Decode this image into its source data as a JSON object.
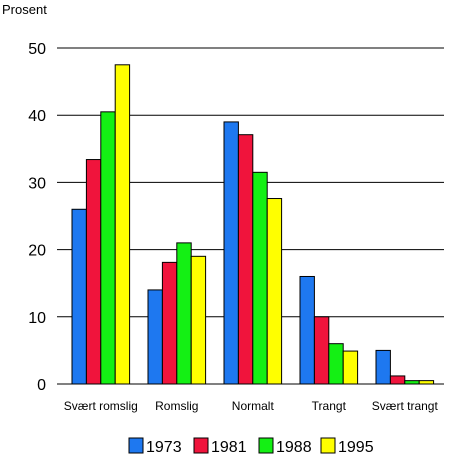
{
  "chart_data": {
    "type": "bar",
    "ylabel": "Prosent",
    "ylim": [
      0,
      50
    ],
    "yticks": [
      0,
      10,
      20,
      30,
      40,
      50
    ],
    "grid": true,
    "legend_position": "bottom",
    "categories": [
      "Svært romslig",
      "Romslig",
      "Normalt",
      "Trangt",
      "Svært trangt"
    ],
    "series": [
      {
        "name": "1973",
        "color": "#1e78f0",
        "values": [
          26,
          14,
          39,
          16,
          5
        ]
      },
      {
        "name": "1981",
        "color": "#f0143c",
        "values": [
          33.4,
          18.1,
          37.1,
          10,
          1.2
        ]
      },
      {
        "name": "1988",
        "color": "#14f014",
        "values": [
          40.5,
          21,
          31.5,
          6,
          0.5
        ]
      },
      {
        "name": "1995",
        "color": "#ffff00",
        "values": [
          47.5,
          19,
          27.6,
          4.9,
          0.5
        ]
      }
    ]
  }
}
